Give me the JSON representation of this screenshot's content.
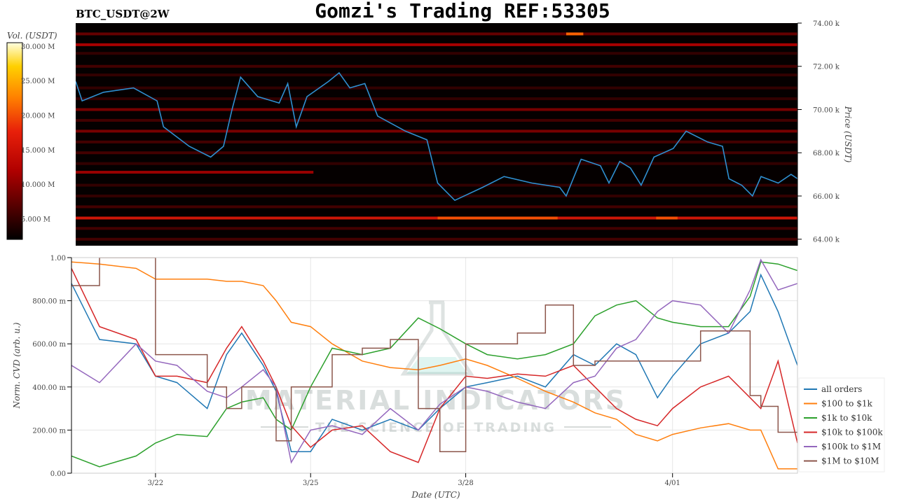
{
  "title": "Gomzi's Trading REF:53305",
  "subtitle": "BTC_USDT@2W",
  "watermark": {
    "line1": "MATERIAL INDICATORS",
    "line2": "THE SCIENCE OF TRADING"
  },
  "chart_data": [
    {
      "type": "heatmap",
      "name": "order-book-heatmap",
      "xlim": [
        "03-20 09:00",
        "04-03 10:00"
      ],
      "ylim": [
        63.7,
        74.0
      ],
      "ylabel": "Price (USDT)",
      "yticks": [
        {
          "value": 64,
          "label": "64.00 k"
        },
        {
          "value": 66,
          "label": "66.00 k"
        },
        {
          "value": 68,
          "label": "68.00 k"
        },
        {
          "value": 70,
          "label": "70.00 k"
        },
        {
          "value": 72,
          "label": "72.00 k"
        },
        {
          "value": 74,
          "label": "74.00 k"
        }
      ],
      "colorbar": {
        "label": "Vol. (USDT)",
        "clim": [
          2,
          30.5
        ],
        "ticks": [
          {
            "value": 5,
            "label": "5.000 M"
          },
          {
            "value": 10,
            "label": "10.000 M"
          },
          {
            "value": 15,
            "label": "15.000 M"
          },
          {
            "value": 20,
            "label": "20.000 M"
          },
          {
            "value": 25,
            "label": "25.000 M"
          },
          {
            "value": 30,
            "label": "30.000 M"
          }
        ]
      },
      "bands": [
        {
          "price": 73.5,
          "vol": 8
        },
        {
          "price": 73.0,
          "vol": 12
        },
        {
          "price": 72.6,
          "vol": 5
        },
        {
          "price": 72.0,
          "vol": 6
        },
        {
          "price": 71.6,
          "vol": 5
        },
        {
          "price": 71.0,
          "vol": 5
        },
        {
          "price": 70.5,
          "vol": 5
        },
        {
          "price": 70.0,
          "vol": 9
        },
        {
          "price": 69.5,
          "vol": 6
        },
        {
          "price": 69.0,
          "vol": 9
        },
        {
          "price": 68.5,
          "vol": 6
        },
        {
          "price": 68.0,
          "vol": 6
        },
        {
          "price": 67.5,
          "vol": 5
        },
        {
          "price": 67.1,
          "vol": 11,
          "to": "03-25 00:00"
        },
        {
          "price": 66.5,
          "vol": 5
        },
        {
          "price": 66.0,
          "vol": 5
        },
        {
          "price": 65.5,
          "vol": 6
        },
        {
          "price": 64.98,
          "vol": 16
        },
        {
          "price": 64.5,
          "vol": 6
        },
        {
          "price": 64.0,
          "vol": 6
        }
      ],
      "hotspots": [
        {
          "price": 73.5,
          "from": "03-29 22:00",
          "to": "03-30 06:00",
          "vol": 21
        },
        {
          "price": 64.98,
          "from": "03-27 10:00",
          "to": "03-29 18:00",
          "vol": 20
        },
        {
          "price": 64.98,
          "from": "03-31 16:00",
          "to": "04-01 02:00",
          "vol": 20
        }
      ],
      "price_line": {
        "color": "#2f8fd0",
        "x": [
          "03-20 09:00",
          "03-20 12:00",
          "03-20 22:00",
          "03-21 12:00",
          "03-21 23:00",
          "03-22 02:00",
          "03-22 14:00",
          "03-23 00:00",
          "03-23 06:00",
          "03-23 10:00",
          "03-23 14:00",
          "03-23 22:00",
          "03-24 08:00",
          "03-24 12:00",
          "03-24 16:00",
          "03-24 21:00",
          "03-25 07:00",
          "03-25 12:00",
          "03-25 17:00",
          "03-26 00:00",
          "03-26 06:00",
          "03-26 19:00",
          "03-27 05:00",
          "03-27 10:00",
          "03-27 18:00",
          "03-28 07:00",
          "03-28 17:00",
          "03-29 06:00",
          "03-29 19:00",
          "03-29 22:00",
          "03-30 05:00",
          "03-30 14:00",
          "03-30 18:00",
          "03-30 23:00",
          "03-31 04:00",
          "03-31 09:00",
          "03-31 15:00",
          "04-01 00:00",
          "04-01 06:00",
          "04-01 16:00",
          "04-01 23:00",
          "04-02 02:00",
          "04-02 08:00",
          "04-02 13:00",
          "04-02 17:00",
          "04-03 01:00",
          "04-03 07:00",
          "04-03 10:00"
        ],
        "y": [
          71.3,
          70.4,
          70.8,
          71.0,
          70.4,
          69.2,
          68.3,
          67.8,
          68.3,
          70.0,
          71.5,
          70.6,
          70.3,
          71.2,
          69.2,
          70.6,
          71.3,
          71.7,
          71.0,
          71.2,
          69.7,
          69.0,
          68.6,
          66.6,
          65.8,
          66.4,
          66.9,
          66.6,
          66.4,
          66.0,
          67.7,
          67.4,
          66.6,
          67.6,
          67.3,
          66.5,
          67.8,
          68.2,
          69.0,
          68.5,
          68.3,
          66.8,
          66.5,
          66.0,
          66.9,
          66.6,
          67.0,
          66.8
        ]
      }
    },
    {
      "type": "line",
      "name": "cvd-chart",
      "xlabel": "Date (UTC)",
      "ylabel": "Norm. CVD (arb. u.)",
      "xlim": [
        "03-20 09:00",
        "04-03 10:00"
      ],
      "ylim": [
        0,
        1
      ],
      "grid": true,
      "legend": "bottom-right",
      "xticks": [
        {
          "value": "03-22 00:00",
          "label": "3/22"
        },
        {
          "value": "03-25 00:00",
          "label": "3/25"
        },
        {
          "value": "03-28 00:00",
          "label": "3/28"
        },
        {
          "value": "04-01 00:00",
          "label": "4/01"
        }
      ],
      "yticks": [
        {
          "value": 0,
          "label": "0.00"
        },
        {
          "value": 0.2,
          "label": "200.00 m"
        },
        {
          "value": 0.4,
          "label": "400.00 m"
        },
        {
          "value": 0.6,
          "label": "600.00 m"
        },
        {
          "value": 0.8,
          "label": "800.00 m"
        },
        {
          "value": 1.0,
          "label": "1.00"
        }
      ],
      "x": [
        "03-20 09:00",
        "03-20 22:00",
        "03-21 15:00",
        "03-22 00:00",
        "03-22 10:00",
        "03-23 00:00",
        "03-23 09:00",
        "03-23 16:00",
        "03-24 02:00",
        "03-24 08:00",
        "03-24 15:00",
        "03-25 00:00",
        "03-25 10:00",
        "03-26 00:00",
        "03-26 13:00",
        "03-27 02:00",
        "03-27 12:00",
        "03-28 00:00",
        "03-28 10:00",
        "03-29 00:00",
        "03-29 13:00",
        "03-30 02:00",
        "03-30 12:00",
        "03-30 22:00",
        "03-31 07:00",
        "03-31 17:00",
        "04-01 00:00",
        "04-01 13:00",
        "04-02 02:00",
        "04-02 12:00",
        "04-02 17:00",
        "04-03 01:00",
        "04-03 10:00"
      ],
      "series": [
        {
          "name": "all orders",
          "color": "#1f77b4",
          "values": [
            0.88,
            0.62,
            0.6,
            0.45,
            0.42,
            0.3,
            0.55,
            0.65,
            0.5,
            0.38,
            0.1,
            0.1,
            0.25,
            0.2,
            0.25,
            0.2,
            0.3,
            0.4,
            0.42,
            0.45,
            0.4,
            0.55,
            0.5,
            0.6,
            0.55,
            0.35,
            0.45,
            0.6,
            0.65,
            0.75,
            0.92,
            0.75,
            0.5
          ]
        },
        {
          "name": "$100 to $1k",
          "color": "#ff7f0e",
          "values": [
            0.98,
            0.97,
            0.95,
            0.9,
            0.9,
            0.9,
            0.89,
            0.89,
            0.87,
            0.8,
            0.7,
            0.68,
            0.6,
            0.52,
            0.49,
            0.48,
            0.5,
            0.53,
            0.5,
            0.44,
            0.38,
            0.33,
            0.28,
            0.25,
            0.18,
            0.15,
            0.18,
            0.21,
            0.23,
            0.2,
            0.2,
            0.02,
            0.02
          ]
        },
        {
          "name": "$1k to $10k",
          "color": "#2ca02c",
          "values": [
            0.08,
            0.03,
            0.08,
            0.14,
            0.18,
            0.17,
            0.3,
            0.33,
            0.35,
            0.25,
            0.2,
            0.4,
            0.58,
            0.55,
            0.58,
            0.72,
            0.67,
            0.6,
            0.55,
            0.53,
            0.55,
            0.6,
            0.73,
            0.78,
            0.8,
            0.72,
            0.7,
            0.68,
            0.68,
            0.82,
            0.98,
            0.97,
            0.94
          ]
        },
        {
          "name": "$10k to $100k",
          "color": "#d62728",
          "values": [
            0.95,
            0.68,
            0.62,
            0.45,
            0.45,
            0.42,
            0.58,
            0.68,
            0.52,
            0.4,
            0.22,
            0.12,
            0.2,
            0.22,
            0.1,
            0.05,
            0.3,
            0.45,
            0.44,
            0.46,
            0.45,
            0.5,
            0.4,
            0.3,
            0.25,
            0.22,
            0.3,
            0.4,
            0.45,
            0.35,
            0.3,
            0.52,
            0.14
          ]
        },
        {
          "name": "$100k to $1M",
          "color": "#9467bd",
          "values": [
            0.5,
            0.42,
            0.6,
            0.52,
            0.5,
            0.38,
            0.35,
            0.4,
            0.48,
            0.4,
            0.05,
            0.2,
            0.22,
            0.18,
            0.3,
            0.2,
            0.32,
            0.4,
            0.38,
            0.33,
            0.3,
            0.42,
            0.45,
            0.58,
            0.62,
            0.75,
            0.8,
            0.78,
            0.65,
            0.85,
            0.99,
            0.85,
            0.88
          ]
        },
        {
          "name": "$1M to $10M",
          "color": "#8c564b",
          "step": true,
          "values": [
            0.87,
            1.0,
            1.0,
            0.55,
            0.55,
            0.4,
            0.3,
            0.4,
            0.4,
            0.15,
            0.4,
            0.4,
            0.55,
            0.58,
            0.62,
            0.3,
            0.1,
            0.6,
            0.6,
            0.65,
            0.78,
            0.5,
            0.52,
            0.52,
            0.52,
            0.52,
            0.52,
            0.66,
            0.66,
            0.36,
            0.31,
            0.19,
            0.19
          ]
        }
      ]
    }
  ]
}
